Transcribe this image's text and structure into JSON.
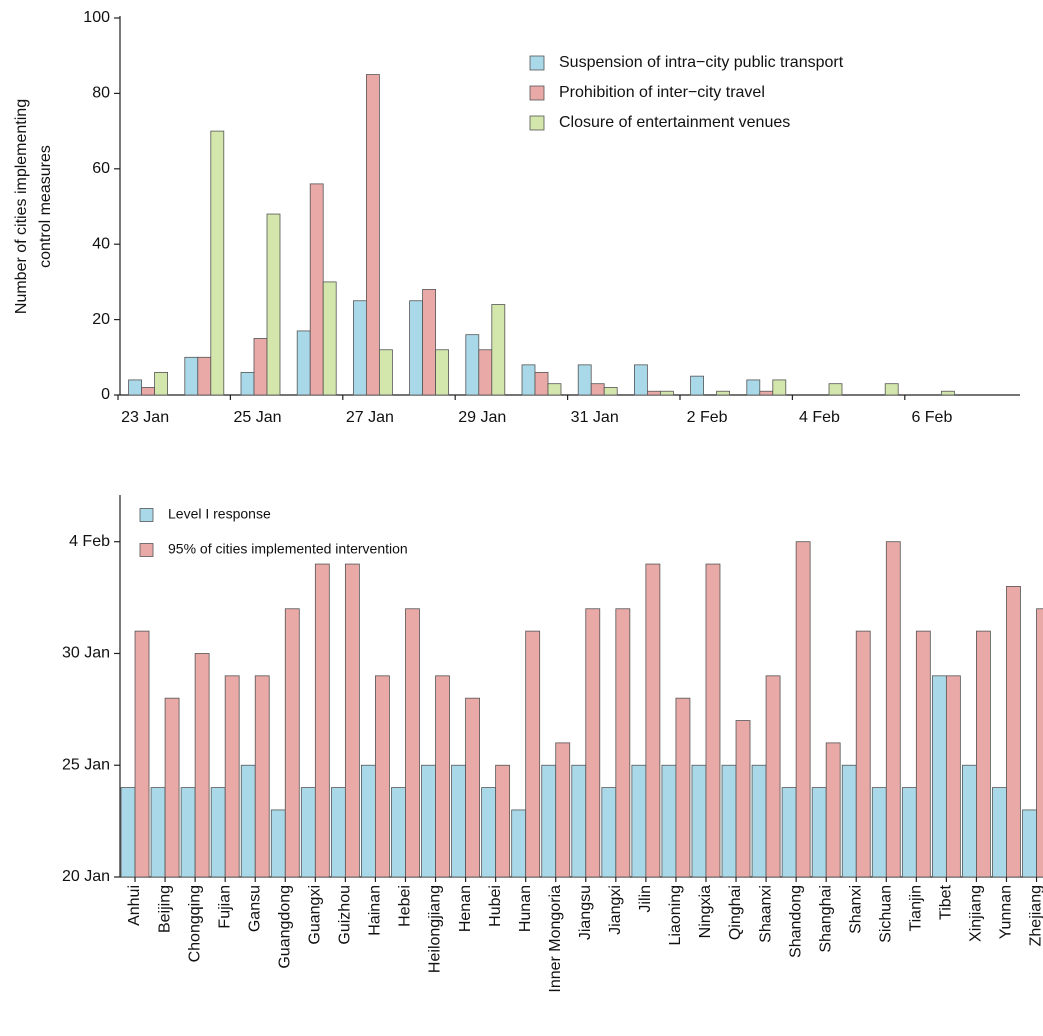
{
  "chart_data": [
    {
      "type": "bar",
      "ylabel": [
        "Number of cities implementing",
        "control measures"
      ],
      "categories": [
        "23 Jan",
        null,
        "25 Jan",
        null,
        "27 Jan",
        null,
        "29 Jan",
        null,
        "31 Jan",
        null,
        "2 Feb",
        null,
        "4 Feb",
        null,
        "6 Feb",
        null
      ],
      "series": [
        {
          "name": "Suspension of intra−city public transport",
          "color": "#a9d9e9",
          "values": [
            4,
            10,
            6,
            17,
            25,
            25,
            16,
            8,
            8,
            8,
            5,
            4,
            0,
            0,
            0,
            0
          ]
        },
        {
          "name": "Prohibition of inter−city travel",
          "color": "#e8a9a7",
          "values": [
            2,
            10,
            15,
            56,
            85,
            28,
            12,
            6,
            3,
            1,
            0,
            1,
            0,
            0,
            0,
            0
          ]
        },
        {
          "name": "Closure of entertainment venues",
          "color": "#d3e6ab",
          "values": [
            6,
            70,
            48,
            30,
            12,
            12,
            24,
            3,
            2,
            1,
            1,
            4,
            3,
            3,
            1,
            0
          ]
        }
      ],
      "ylim": [
        0,
        100
      ],
      "yticks": [
        0,
        20,
        40,
        60,
        80,
        100
      ]
    },
    {
      "type": "bar",
      "categories": [
        "Anhui",
        "Beijing",
        "Chongqing",
        "Fujian",
        "Gansu",
        "Guangdong",
        "Guangxi",
        "Guizhou",
        "Hainan",
        "Hebei",
        "Heilongjiang",
        "Henan",
        "Hubei",
        "Hunan",
        "Inner Mongoria",
        "Jiangsu",
        "Jiangxi",
        "Jilin",
        "Liaoning",
        "Ningxia",
        "Qinghai",
        "Shaanxi",
        "Shandong",
        "Shanghai",
        "Shanxi",
        "Sichuan",
        "Tianjin",
        "Tibet",
        "Xinjiang",
        "Yunnan",
        "Zhejiang"
      ],
      "series": [
        {
          "name": "Level I response",
          "color": "#a9d9e9",
          "values": [
            24,
            24,
            24,
            24,
            25,
            23,
            24,
            24,
            25,
            24,
            25,
            25,
            24,
            23,
            25,
            25,
            24,
            25,
            25,
            25,
            25,
            25,
            24,
            24,
            25,
            24,
            24,
            29,
            25,
            24,
            23
          ]
        },
        {
          "name": "95% of cities implemented intervention",
          "color": "#e8a9a7",
          "values": [
            31,
            28,
            30,
            29,
            29,
            32,
            34,
            34,
            29,
            32,
            29,
            28,
            25,
            31,
            26,
            32,
            32,
            34,
            28,
            34,
            27,
            29,
            35,
            26,
            31,
            35,
            31,
            29,
            31,
            33,
            32
          ]
        }
      ],
      "ylim": [
        20,
        37
      ],
      "yticks": [
        {
          "value": 20,
          "label": "20 Jan"
        },
        {
          "value": 25,
          "label": "25 Jan"
        },
        {
          "value": 30,
          "label": "30 Jan"
        },
        {
          "value": 35,
          "label": "4 Feb"
        }
      ]
    }
  ]
}
